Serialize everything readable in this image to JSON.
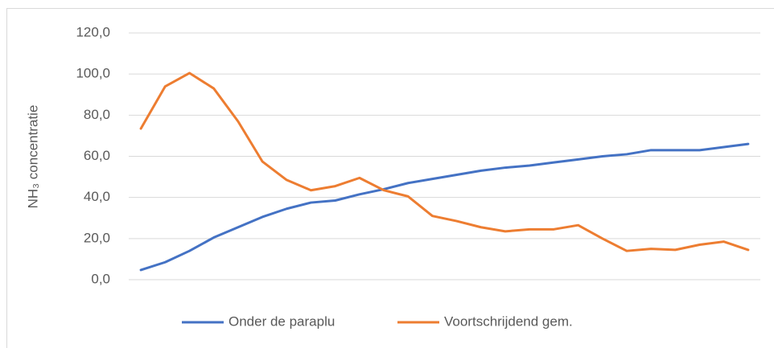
{
  "chart_data": {
    "type": "line",
    "ylabel": "NH₃ concentratie",
    "categories": [
      null,
      null,
      null,
      null,
      null,
      null,
      null,
      null,
      null,
      null,
      null,
      null,
      null,
      null,
      null,
      null,
      null,
      null,
      null,
      null,
      null,
      null,
      null,
      null,
      null,
      null
    ],
    "series": [
      {
        "name": "Onder de paraplu",
        "color": "#4472c4",
        "values": [
          4.7,
          8.5,
          14,
          20.5,
          25.5,
          30.5,
          34.5,
          37.5,
          38.5,
          41.5,
          44,
          47,
          49,
          51,
          53,
          54.5,
          55.5,
          57,
          58.5,
          60,
          61,
          63,
          63,
          63,
          64.5,
          66
        ]
      },
      {
        "name": "Voortschrijdend gem.",
        "color": "#ed7d31",
        "values": [
          73.5,
          94,
          100.5,
          93,
          77,
          57.5,
          48.5,
          43.5,
          45.5,
          49.5,
          43.5,
          40.5,
          31,
          28.5,
          25.5,
          23.5,
          24.5,
          24.5,
          26.5,
          20,
          14,
          15,
          14.5,
          17,
          18.5,
          14.5
        ]
      }
    ],
    "ylim": [
      0,
      120
    ],
    "yticks": [
      {
        "value": 0,
        "label": "0,0"
      },
      {
        "value": 20,
        "label": "20,0"
      },
      {
        "value": 40,
        "label": "40,0"
      },
      {
        "value": 60,
        "label": "60,0"
      },
      {
        "value": 80,
        "label": "80,0"
      },
      {
        "value": 100,
        "label": "100,0"
      },
      {
        "value": 120,
        "label": "120,0"
      }
    ],
    "grid": true,
    "legend": "bottom"
  }
}
